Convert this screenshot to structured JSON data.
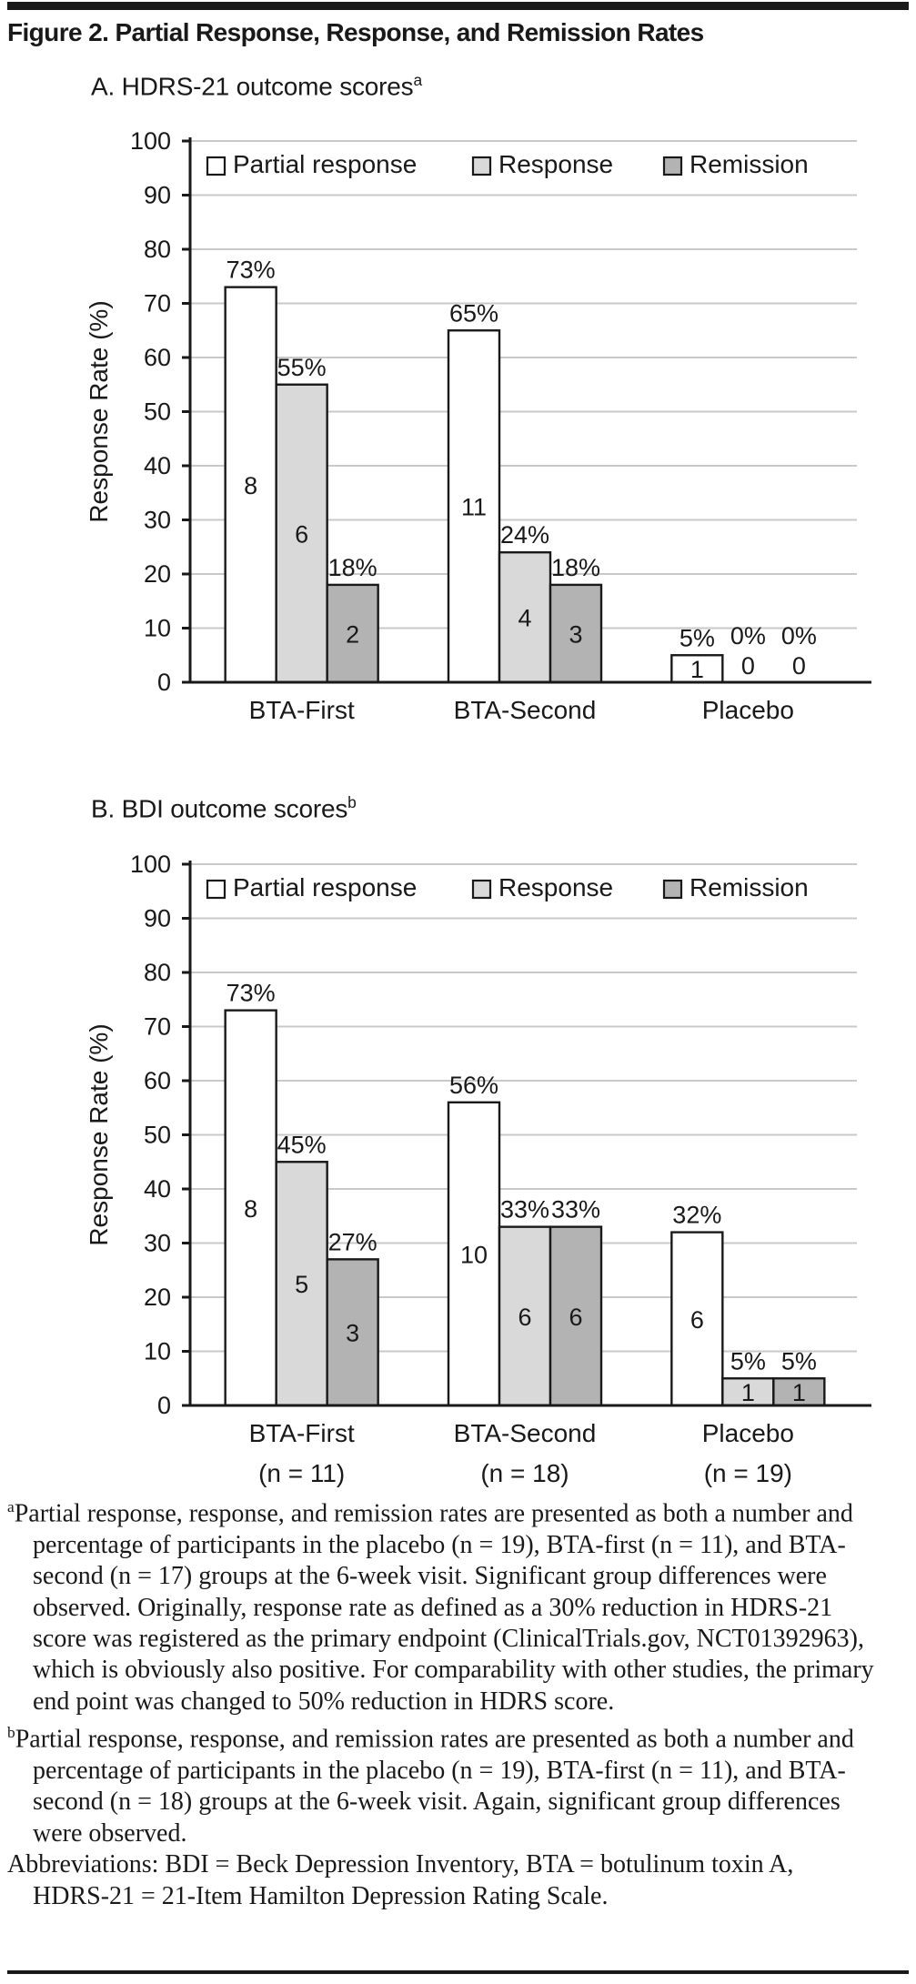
{
  "figure_title": "Figure 2. Partial Response, Response, and Remission Rates",
  "colors": {
    "bar_partial_response": "#ffffff",
    "bar_response": "#d9d9d9",
    "bar_remission": "#b3b3b3",
    "axis": "#191919",
    "gridline": "#c9c9c9",
    "text": "#191919"
  },
  "chart_data": [
    {
      "type": "bar",
      "title": "A. HDRS-21 outcome scores",
      "title_sup": "a",
      "xlabel": "",
      "ylabel": "Response Rate (%)",
      "ylim": [
        0,
        100
      ],
      "ytick_step": 10,
      "grid": true,
      "legend_position": "top-inside",
      "legend": [
        "Partial response",
        "Response",
        "Remission"
      ],
      "categories": [
        "BTA-First",
        "BTA-Second",
        "Placebo"
      ],
      "category_sublabels": [
        "",
        "",
        ""
      ],
      "series": [
        {
          "name": "Partial response",
          "fill": "#ffffff",
          "values": [
            73,
            65,
            5
          ],
          "counts": [
            8,
            11,
            1
          ]
        },
        {
          "name": "Response",
          "fill": "#d9d9d9",
          "values": [
            55,
            24,
            0
          ],
          "counts": [
            6,
            4,
            0
          ]
        },
        {
          "name": "Remission",
          "fill": "#b3b3b3",
          "values": [
            18,
            18,
            0
          ],
          "counts": [
            2,
            3,
            0
          ]
        }
      ]
    },
    {
      "type": "bar",
      "title": "B. BDI outcome scores",
      "title_sup": "b",
      "xlabel": "",
      "ylabel": "Response Rate (%)",
      "ylim": [
        0,
        100
      ],
      "ytick_step": 10,
      "grid": true,
      "legend_position": "top-inside",
      "legend": [
        "Partial response",
        "Response",
        "Remission"
      ],
      "categories": [
        "BTA-First",
        "BTA-Second",
        "Placebo"
      ],
      "category_sublabels": [
        "(n = 11)",
        "(n = 18)",
        "(n = 19)"
      ],
      "series": [
        {
          "name": "Partial response",
          "fill": "#ffffff",
          "values": [
            73,
            56,
            32
          ],
          "counts": [
            8,
            10,
            6
          ]
        },
        {
          "name": "Response",
          "fill": "#d9d9d9",
          "values": [
            45,
            33,
            5
          ],
          "counts": [
            5,
            6,
            1
          ]
        },
        {
          "name": "Remission",
          "fill": "#b3b3b3",
          "values": [
            27,
            33,
            5
          ],
          "counts": [
            3,
            6,
            1
          ]
        }
      ]
    }
  ],
  "footnotes": [
    {
      "marker": "a",
      "text": "Partial response, response, and remission rates are presented as both a number and percentage of participants in the placebo (n = 19), BTA-first (n = 11), and BTA-second (n = 17) groups at the 6-week visit. Significant group differences were observed. Originally, response rate as defined as a 30% reduction in HDRS-21 score was registered as the primary endpoint (ClinicalTrials.gov, NCT01392963), which is obviously also positive. For comparability with other studies, the primary end point was changed to 50% reduction in HDRS score."
    },
    {
      "marker": "b",
      "text": "Partial response, response, and remission rates are presented as both a number and percentage of participants in the placebo (n = 19), BTA-first (n = 11), and BTA-second (n = 18) groups at the 6-week visit. Again, significant group differences were observed."
    },
    {
      "marker": "",
      "text": "Abbreviations: BDI = Beck Depression Inventory, BTA = botulinum toxin A, HDRS-21 = 21-Item Hamilton Depression Rating Scale."
    }
  ]
}
